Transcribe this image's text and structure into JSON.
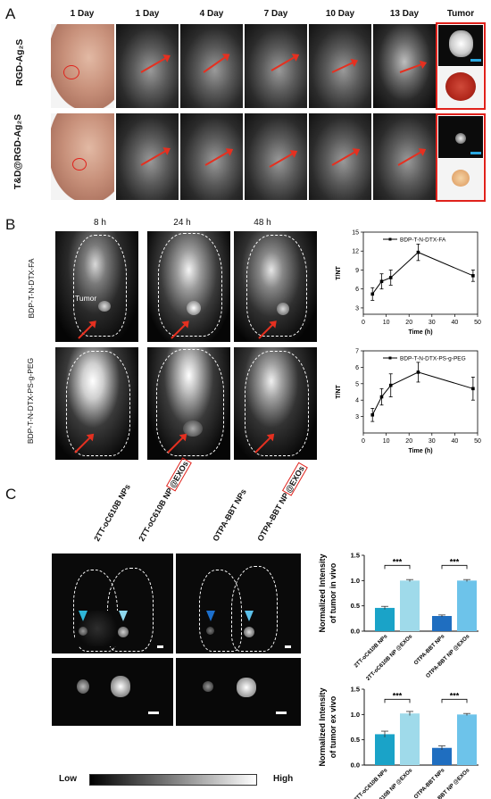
{
  "panelA": {
    "letter": "A",
    "columns": [
      "1 Day",
      "1 Day",
      "4 Day",
      "7 Day",
      "10 Day",
      "13 Day",
      "Tumor"
    ],
    "rows": [
      "RGD-Ag₂S",
      "T&D@RGD-Ag₂S"
    ]
  },
  "panelB": {
    "letter": "B",
    "columns": [
      "8 h",
      "24 h",
      "48 h"
    ],
    "rows": [
      "BDP-T-N-DTX-FA",
      "BDP-T-N-DTX-PS-g-PEG"
    ],
    "tumor_label": "Tumor"
  },
  "panelC": {
    "letter": "C",
    "col_labels": [
      "2TT-oC610B NPs",
      "2TT-oC610B NP@EXOs",
      "OTPA-BBT NPs",
      "OTPA-BBT NP@EXOs"
    ],
    "col_labels_plain": [
      "2TT-oC610B NP",
      "OTPA-BBT NP"
    ],
    "col_labels_boxed": "@EXOs",
    "scale_low": "Low",
    "scale_high": "High",
    "bar_y1_label": "Normalized Intensity of tumor in vivo",
    "bar_y2_label": "Normalized Intensity of tumor ex vivo",
    "sig": "***"
  },
  "chart_data": [
    {
      "type": "line",
      "series": [
        {
          "name": "BDP-T-N-DTX-FA",
          "x": [
            4,
            8,
            12,
            24,
            48
          ],
          "y": [
            5.2,
            7.2,
            7.8,
            11.8,
            8.1
          ],
          "err": [
            1.0,
            1.2,
            1.2,
            1.3,
            0.9
          ]
        }
      ],
      "xlabel": "Time (h)",
      "ylabel": "T/NT",
      "xlim": [
        0,
        50
      ],
      "ylim": [
        2,
        15
      ],
      "xticks": [
        0,
        10,
        20,
        30,
        40,
        50
      ],
      "yticks": [
        3,
        6,
        9,
        12,
        15
      ]
    },
    {
      "type": "line",
      "series": [
        {
          "name": "BDP-T-N-DTX-PS-g-PEG",
          "x": [
            4,
            8,
            12,
            24,
            48
          ],
          "y": [
            3.1,
            4.2,
            4.9,
            5.7,
            4.7
          ],
          "err": [
            0.4,
            0.5,
            0.7,
            0.6,
            0.7
          ]
        }
      ],
      "xlabel": "Time (h)",
      "ylabel": "T/NT",
      "xlim": [
        0,
        50
      ],
      "ylim": [
        2,
        7
      ],
      "xticks": [
        0,
        10,
        20,
        30,
        40,
        50
      ],
      "yticks": [
        3,
        4,
        5,
        6,
        7
      ]
    },
    {
      "type": "bar",
      "categories": [
        "2TT-oC610B NPs",
        "2TT-oC610B NP @EXOs",
        "OTPA-BBT NPs",
        "OTPA-BBT NP @EXOs"
      ],
      "values": [
        0.46,
        1.0,
        0.3,
        1.0
      ],
      "err": [
        0.03,
        0.02,
        0.02,
        0.02
      ],
      "colors": [
        "#1aa3c8",
        "#9fdaea",
        "#1f6ec0",
        "#6dc3ea"
      ],
      "ylim": [
        0,
        1.5
      ],
      "yticks": [
        0.0,
        0.5,
        1.0,
        1.5
      ]
    },
    {
      "type": "bar",
      "categories": [
        "2TT-oC610B NPs",
        "2TT-oC610B NP @EXOs",
        "OTPA-BBT NPs",
        "OTPA-BBT NP @EXOs"
      ],
      "values": [
        0.61,
        1.02,
        0.34,
        1.0
      ],
      "err": [
        0.06,
        0.04,
        0.04,
        0.02
      ],
      "colors": [
        "#1aa3c8",
        "#9fdaea",
        "#1f6ec0",
        "#6dc3ea"
      ],
      "ylim": [
        0,
        1.5
      ],
      "yticks": [
        0.0,
        0.5,
        1.0,
        1.5
      ]
    }
  ]
}
